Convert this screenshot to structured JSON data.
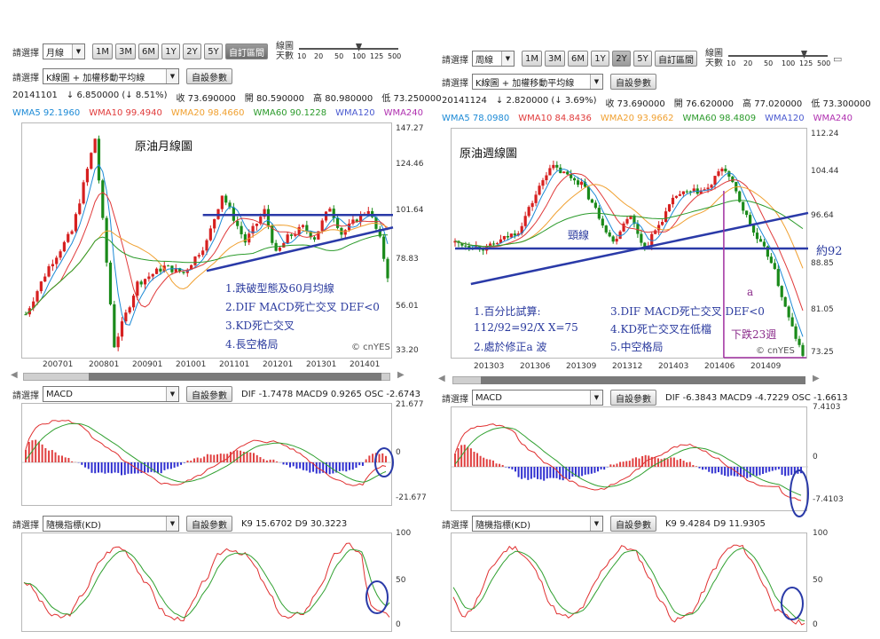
{
  "controls": {
    "select_label": "請選擇",
    "indicator_params_button": "自設參數",
    "custom_range_button": "自訂區間",
    "slider_caption_line1": "線圖",
    "slider_caption_line2": "天數",
    "slider_ticks": [
      "10",
      "20",
      "50",
      "100",
      "125",
      "500"
    ],
    "period_buttons": [
      "1M",
      "3M",
      "6M",
      "1Y",
      "2Y",
      "5Y"
    ]
  },
  "left": {
    "period_select": "月線",
    "active_period": "",
    "main_type_select": "K線圖 + 加權移動平均線",
    "quote": {
      "date": "20141101",
      "change": "↓ 6.850000 (↓ 8.51%)",
      "close": "收 73.690000",
      "open": "開 80.590000",
      "high": "高 80.980000",
      "low": "低 73.250000"
    },
    "ma_legend": [
      {
        "text": "WMA5 92.1960",
        "color": "#1c8ad6"
      },
      {
        "text": "WMA10 99.4940",
        "color": "#e03a3a"
      },
      {
        "text": "WMA20 98.4660",
        "color": "#f0a030"
      },
      {
        "text": "WMA60 90.1228",
        "color": "#2a9a2a"
      },
      {
        "text": "WMA120",
        "color": "#4a5ad0"
      },
      {
        "text": "WMA240",
        "color": "#b030b0"
      }
    ],
    "price_axis": [
      "147.27",
      "124.46",
      "101.64",
      "78.83",
      "56.01",
      "33.20"
    ],
    "x_axis": [
      "200701",
      "200801",
      "200901",
      "201001",
      "201101",
      "201201",
      "201301",
      "201401"
    ],
    "chart_title": "原油月線圖",
    "annotations": [
      "1.跌破型態及60月均線",
      "2.DIF MACD死亡交叉 DEF<0",
      "3.KD死亡交叉",
      "4.長空格局"
    ],
    "watermark": "© cnYES",
    "macd": {
      "select": "MACD",
      "values": "DIF -1.7478   MACD9 0.9265   OSC -2.6743",
      "axis": [
        "21.677",
        "0",
        "-21.677"
      ]
    },
    "kd": {
      "select": "隨機指標(KD)",
      "values": "K9 15.6702   D9 30.3223",
      "axis": [
        "100",
        "50",
        "0"
      ]
    }
  },
  "right": {
    "period_select": "周線",
    "active_period": "2Y",
    "main_type_select": "K線圖 + 加權移動平均線",
    "quote": {
      "date": "20141124",
      "change": "↓ 2.820000 (↓ 3.69%)",
      "close": "收 73.690000",
      "open": "開 76.620000",
      "high": "高 77.020000",
      "low": "低 73.300000"
    },
    "ma_legend": [
      {
        "text": "WMA5 78.0980",
        "color": "#1c8ad6"
      },
      {
        "text": "WMA10 84.8436",
        "color": "#e03a3a"
      },
      {
        "text": "WMA20 93.9662",
        "color": "#f0a030"
      },
      {
        "text": "WMA60 98.4809",
        "color": "#2a9a2a"
      },
      {
        "text": "WMA120",
        "color": "#4a5ad0"
      },
      {
        "text": "WMA240",
        "color": "#b030b0"
      }
    ],
    "price_axis": [
      "112.24",
      "104.44",
      "96.64",
      "88.85",
      "81.05",
      "73.25"
    ],
    "x_axis": [
      "201303",
      "201306",
      "201309",
      "201312",
      "201403",
      "201406",
      "201409"
    ],
    "chart_title": "原油週線圖",
    "neckline_label": "頸線",
    "level_label": "約92",
    "a_label": "a",
    "drop_label": "下跌23週",
    "annotations_col1": [
      "1.百分比試算:",
      "112/92=92/X   X=75",
      "2.處於修正a 波"
    ],
    "annotations_col2": [
      "3.DIF MACD死亡交叉 DEF<0",
      "4.KD死亡交叉在低檔",
      "5.中空格局"
    ],
    "watermark": "© cnYES",
    "macd": {
      "select": "MACD",
      "values": "DIF -6.3843   MACD9 -4.7229   OSC -1.6613",
      "axis": [
        "7.4103",
        "0",
        "-7.4103"
      ]
    },
    "kd": {
      "select": "隨機指標(KD)",
      "values": "K9 9.4284   D9 11.9305",
      "axis": [
        "100",
        "50",
        "0"
      ]
    }
  },
  "chart_data": [
    {
      "type": "candlestick",
      "title": "原油月線圖",
      "x_ticks": [
        "200701",
        "200801",
        "200901",
        "201001",
        "201101",
        "201201",
        "201301",
        "201401"
      ],
      "ylim": [
        33.2,
        147.27
      ],
      "close_path": [
        {
          "x": "200701",
          "y": 55
        },
        {
          "x": "200707",
          "y": 78
        },
        {
          "x": "200801",
          "y": 95
        },
        {
          "x": "200807",
          "y": 140
        },
        {
          "x": "200812",
          "y": 40
        },
        {
          "x": "200906",
          "y": 70
        },
        {
          "x": "201001",
          "y": 78
        },
        {
          "x": "201006",
          "y": 75
        },
        {
          "x": "201012",
          "y": 90
        },
        {
          "x": "201104",
          "y": 113
        },
        {
          "x": "201110",
          "y": 90
        },
        {
          "x": "201203",
          "y": 105
        },
        {
          "x": "201206",
          "y": 84
        },
        {
          "x": "201209",
          "y": 92
        },
        {
          "x": "201301",
          "y": 97
        },
        {
          "x": "201304",
          "y": 92
        },
        {
          "x": "201308",
          "y": 107
        },
        {
          "x": "201311",
          "y": 94
        },
        {
          "x": "201403",
          "y": 101
        },
        {
          "x": "201406",
          "y": 106
        },
        {
          "x": "201409",
          "y": 91
        },
        {
          "x": "201411",
          "y": 73.69
        }
      ],
      "lines": [
        {
          "name": "resistance",
          "from": {
            "x": "201011",
            "y": 103
          },
          "to": {
            "x": "201411",
            "y": 103
          }
        },
        {
          "name": "support",
          "from": {
            "x": "201012",
            "y": 76
          },
          "to": {
            "x": "201411",
            "y": 97
          }
        }
      ]
    },
    {
      "type": "candlestick",
      "title": "原油週線圖",
      "x_ticks": [
        "201303",
        "201306",
        "201309",
        "201312",
        "201403",
        "201406",
        "201409"
      ],
      "ylim": [
        73.25,
        112.24
      ],
      "close_path": [
        {
          "x": "201301",
          "y": 93
        },
        {
          "x": "201303",
          "y": 92
        },
        {
          "x": "201305",
          "y": 95
        },
        {
          "x": "201307",
          "y": 106
        },
        {
          "x": "201309",
          "y": 103
        },
        {
          "x": "201311",
          "y": 93
        },
        {
          "x": "201312",
          "y": 98
        },
        {
          "x": "201401",
          "y": 92
        },
        {
          "x": "201403",
          "y": 101
        },
        {
          "x": "201405",
          "y": 102
        },
        {
          "x": "201406",
          "y": 106
        },
        {
          "x": "201407",
          "y": 100
        },
        {
          "x": "201408",
          "y": 94
        },
        {
          "x": "201409",
          "y": 90
        },
        {
          "x": "201410",
          "y": 81
        },
        {
          "x": "201411",
          "y": 73.69
        }
      ],
      "lines": [
        {
          "name": "neckline",
          "from": {
            "x": "201301",
            "y": 92
          },
          "to": {
            "x": "201411",
            "y": 92
          }
        },
        {
          "name": "trendline",
          "from": {
            "x": "201302",
            "y": 86
          },
          "to": {
            "x": "201411",
            "y": 98
          }
        }
      ]
    },
    {
      "type": "bar",
      "title": "MACD",
      "ylim": [
        -21.677,
        21.677
      ],
      "values": {
        "DIF": -1.7478,
        "MACD9": 0.9265,
        "OSC": -2.6743
      }
    },
    {
      "type": "bar",
      "title": "MACD",
      "ylim": [
        -7.4103,
        7.4103
      ],
      "values": {
        "DIF": -6.3843,
        "MACD9": -4.7229,
        "OSC": -1.6613
      }
    },
    {
      "type": "line",
      "title": "隨機指標(KD)",
      "ylim": [
        0,
        100
      ],
      "values": {
        "K9": 15.6702,
        "D9": 30.3223
      }
    },
    {
      "type": "line",
      "title": "隨機指標(KD)",
      "ylim": [
        0,
        100
      ],
      "values": {
        "K9": 9.4284,
        "D9": 11.9305
      }
    }
  ]
}
